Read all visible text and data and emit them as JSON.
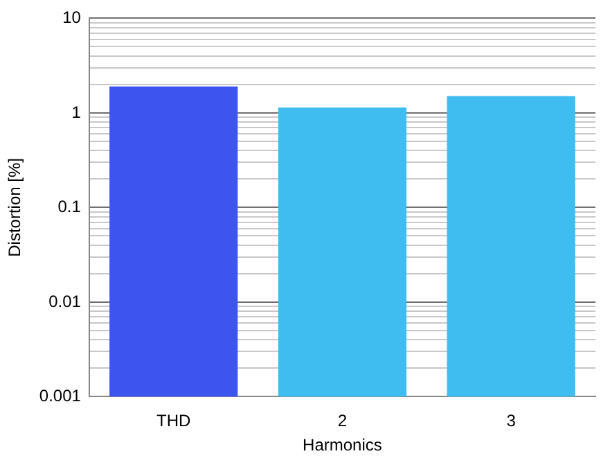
{
  "chart_data": {
    "type": "bar",
    "xlabel": "Harmonics",
    "ylabel": "Distortion [%]",
    "categories": [
      "THD",
      "2",
      "3"
    ],
    "values": [
      1.9,
      1.14,
      1.5
    ],
    "colors": [
      "#3d55ee",
      "#3fbdf0",
      "#3fbdf0"
    ],
    "log": "y",
    "ylim": [
      0.001,
      10
    ],
    "yticks": [
      0.001,
      0.01,
      0.1,
      1,
      10
    ],
    "grid": "y",
    "legend": false
  }
}
